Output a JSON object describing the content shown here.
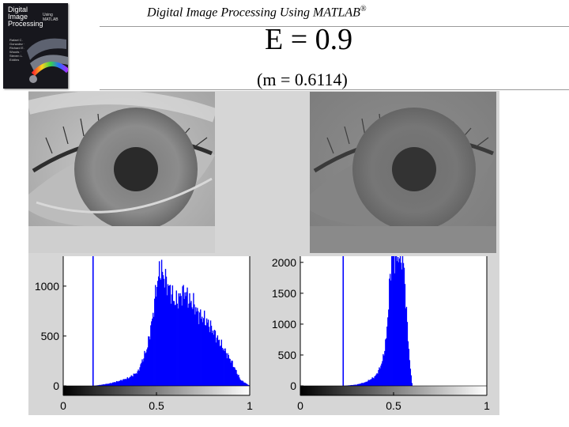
{
  "header": {
    "title": "Digital Image Processing Using MATLAB",
    "registered": "®"
  },
  "book": {
    "title": "Digital Image Processing",
    "subtitle": "Using MATLAB",
    "authors": "Rafael C. Gonzalez · Richard E. Woods · Steven L. Eddins"
  },
  "slide": {
    "title": "E = 0.9",
    "subtitle": "(m = 0.6114)"
  },
  "images": [
    {
      "name": "original-eye",
      "tone": "light"
    },
    {
      "name": "enhanced-eye",
      "tone": "dark"
    }
  ],
  "chart_data": [
    {
      "type": "bar",
      "name": "left-histogram",
      "xlim": [
        0,
        1
      ],
      "ylim": [
        0,
        1300
      ],
      "x_ticks": [
        0,
        0.5,
        1
      ],
      "x_tick_labels": [
        "0",
        "0.5",
        "1"
      ],
      "y_ticks": [
        0,
        500,
        1000
      ],
      "y_tick_labels": [
        "0",
        "500",
        "1000"
      ],
      "spike_x": 0.16,
      "colorbar": "grayscale",
      "bar_color": "#0000ff",
      "x": [
        0.16,
        0.2,
        0.25,
        0.3,
        0.35,
        0.4,
        0.45,
        0.48,
        0.5,
        0.52,
        0.55,
        0.58,
        0.6,
        0.62,
        0.65,
        0.68,
        0.7,
        0.72,
        0.75,
        0.78,
        0.8,
        0.85,
        0.9,
        0.95,
        1.0
      ],
      "values": [
        0,
        10,
        25,
        50,
        80,
        140,
        380,
        700,
        1000,
        1180,
        1050,
        930,
        830,
        880,
        950,
        840,
        820,
        730,
        680,
        620,
        560,
        400,
        250,
        60,
        0
      ]
    },
    {
      "type": "bar",
      "name": "right-histogram",
      "xlim": [
        0,
        1
      ],
      "ylim": [
        0,
        2100
      ],
      "x_ticks": [
        0,
        0.5,
        1
      ],
      "x_tick_labels": [
        "0",
        "0.5",
        "1"
      ],
      "y_ticks": [
        0,
        500,
        1000,
        1500,
        2000
      ],
      "y_tick_labels": [
        "0",
        "500",
        "1000",
        "1500",
        "2000"
      ],
      "spike_x": 0.23,
      "colorbar": "grayscale",
      "bar_color": "#0000ff",
      "x": [
        0.23,
        0.3,
        0.35,
        0.4,
        0.42,
        0.44,
        0.46,
        0.47,
        0.48,
        0.49,
        0.5,
        0.52,
        0.54,
        0.55,
        0.56,
        0.57,
        0.58,
        0.59,
        0.6
      ],
      "values": [
        0,
        20,
        60,
        150,
        250,
        400,
        750,
        1200,
        1700,
        2100,
        2100,
        2100,
        2100,
        2050,
        1700,
        1100,
        650,
        250,
        0
      ]
    }
  ]
}
